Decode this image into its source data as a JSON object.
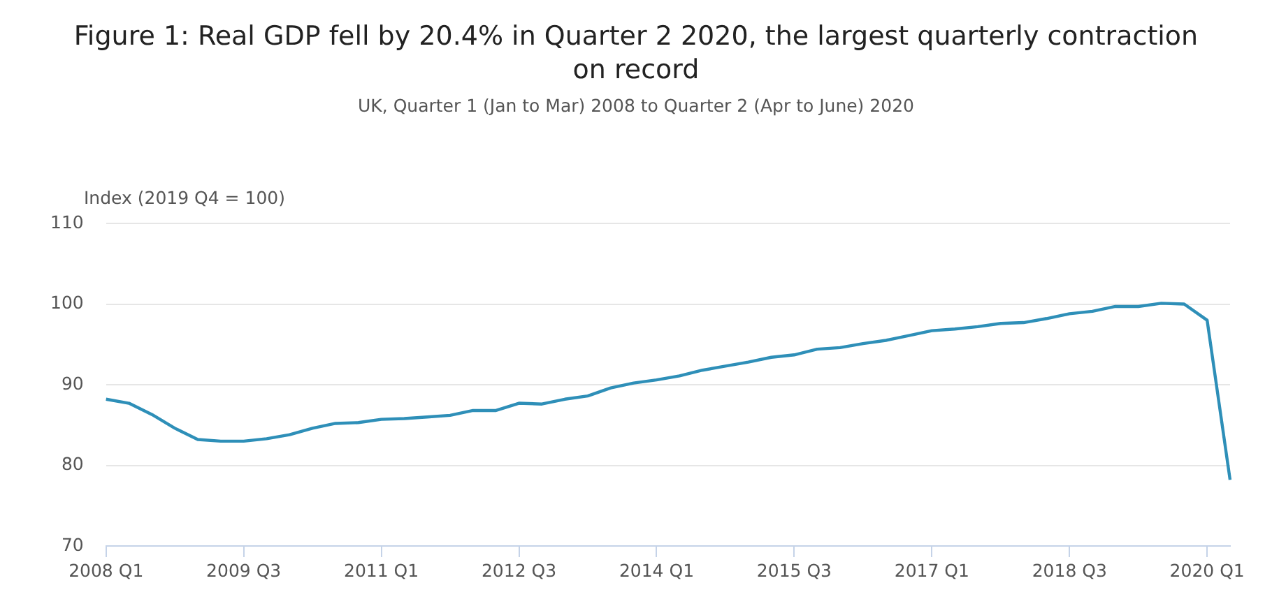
{
  "chart_data": {
    "type": "line",
    "title": "Figure 1: Real GDP fell by 20.4% in Quarter 2 2020, the largest quarterly contraction on record",
    "subtitle": "UK, Quarter 1 (Jan to Mar) 2008 to Quarter 2 (Apr to June) 2020",
    "ylabel": "Index (2019 Q4 = 100)",
    "categories": [
      "2008 Q1",
      null,
      null,
      null,
      null,
      null,
      "2009 Q3",
      null,
      null,
      null,
      null,
      null,
      "2011 Q1",
      null,
      null,
      null,
      null,
      null,
      "2012 Q3",
      null,
      null,
      null,
      null,
      null,
      "2014 Q1",
      null,
      null,
      null,
      null,
      null,
      "2015 Q3",
      null,
      null,
      null,
      null,
      null,
      "2017 Q1",
      null,
      null,
      null,
      null,
      null,
      "2018 Q3",
      null,
      null,
      null,
      null,
      null,
      "2020 Q1",
      null
    ],
    "series": [
      {
        "color": "#2e8fb8",
        "values": [
          88.2,
          87.7,
          86.3,
          84.6,
          83.2,
          83.0,
          83.0,
          83.3,
          83.8,
          84.6,
          85.2,
          85.3,
          85.7,
          85.8,
          86.0,
          86.2,
          86.8,
          86.8,
          87.7,
          87.6,
          88.2,
          88.6,
          89.6,
          90.2,
          90.6,
          91.1,
          91.8,
          92.3,
          92.8,
          93.4,
          93.7,
          94.4,
          94.6,
          95.1,
          95.5,
          96.1,
          96.7,
          96.9,
          97.2,
          97.6,
          97.7,
          98.2,
          98.8,
          99.1,
          99.7,
          99.7,
          100.1,
          100.0,
          98.0,
          78.2
        ]
      }
    ],
    "ylim": [
      70,
      110
    ],
    "yticks": [
      70,
      80,
      90,
      100,
      110
    ],
    "grid": "y",
    "legend": false,
    "marker": "none",
    "line_style": "solid"
  }
}
